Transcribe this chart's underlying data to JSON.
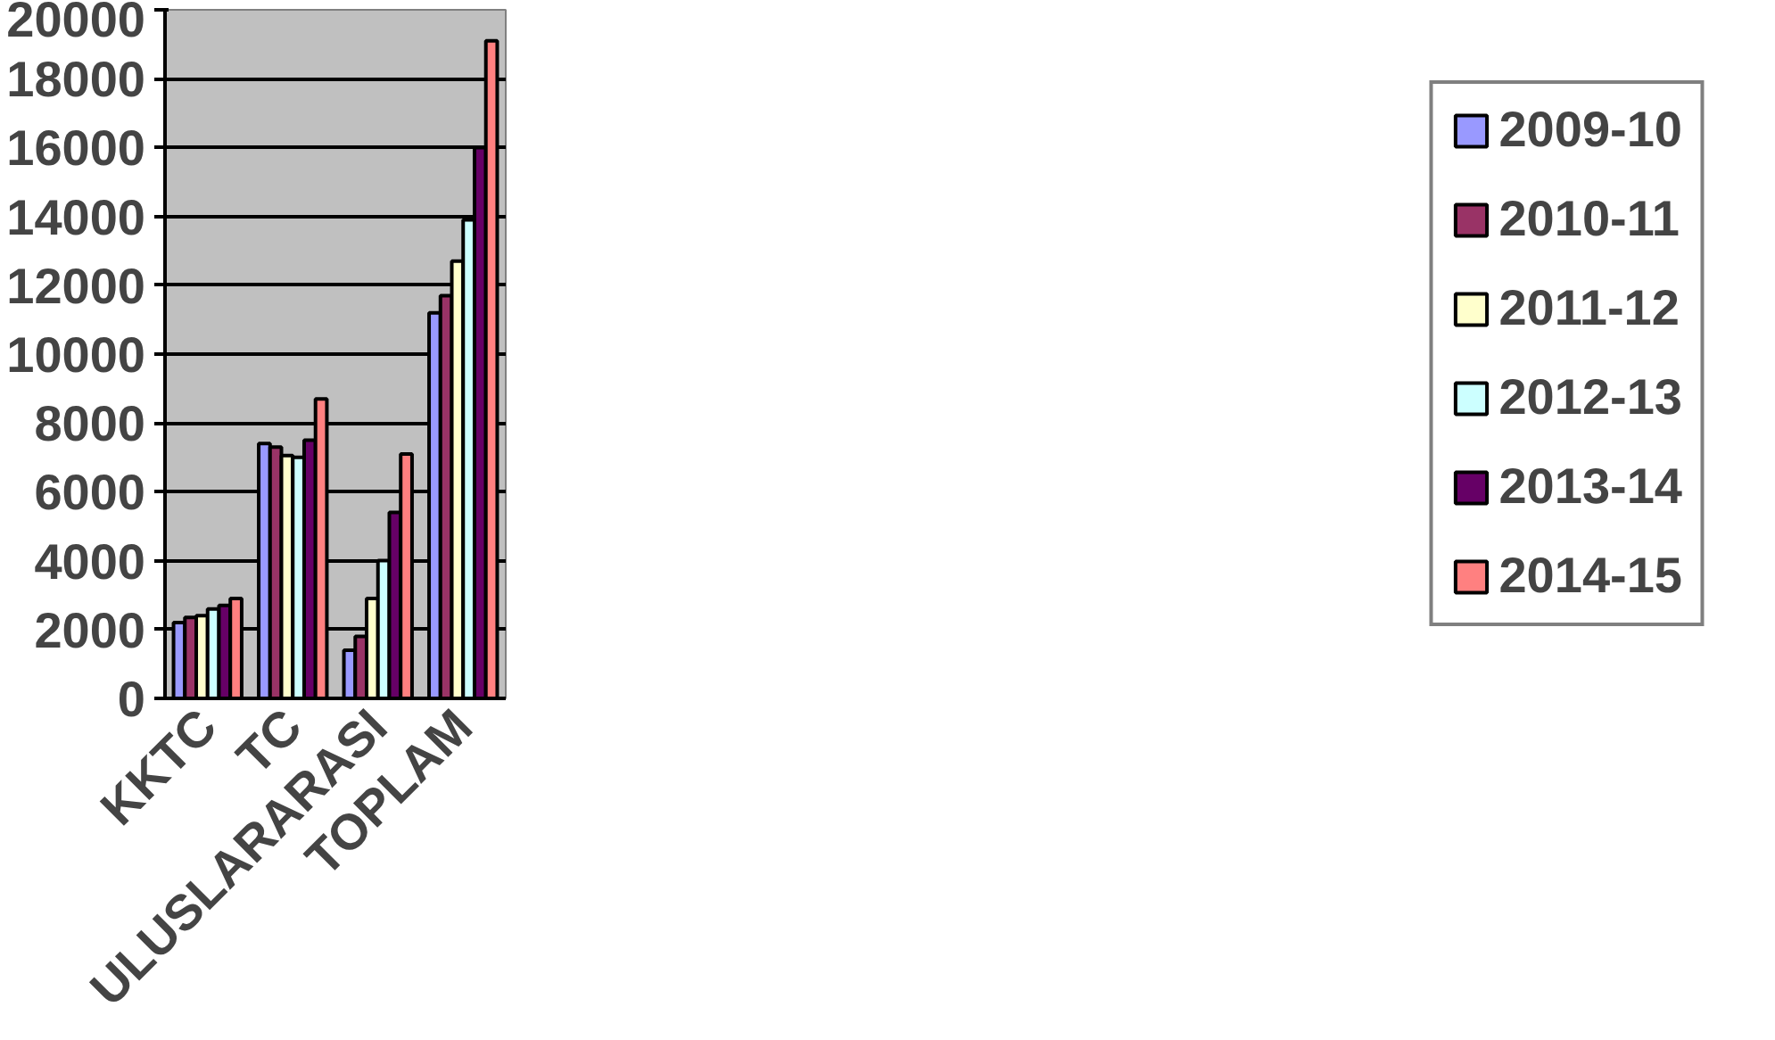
{
  "chart_data": {
    "type": "bar",
    "categories": [
      "KKTC",
      "TC",
      "ULUSLARARASI",
      "TOPLAM"
    ],
    "series": [
      {
        "name": "2009-10",
        "color": "#9999ff",
        "values": [
          2200,
          7400,
          1400,
          11200
        ]
      },
      {
        "name": "2010-11",
        "color": "#993366",
        "values": [
          2350,
          7300,
          1800,
          11700
        ]
      },
      {
        "name": "2011-12",
        "color": "#ffffcc",
        "values": [
          2400,
          7050,
          2900,
          12700
        ]
      },
      {
        "name": "2012-13",
        "color": "#ccffff",
        "values": [
          2600,
          7000,
          4000,
          13900
        ]
      },
      {
        "name": "2013-14",
        "color": "#660066",
        "values": [
          2700,
          7500,
          5400,
          16000
        ]
      },
      {
        "name": "2014-15",
        "color": "#ff8080",
        "values": [
          2900,
          8700,
          7100,
          19100
        ]
      }
    ],
    "ylim": [
      0,
      20000
    ],
    "yticks": [
      0,
      2000,
      4000,
      6000,
      8000,
      10000,
      12000,
      14000,
      16000,
      18000,
      20000
    ],
    "grid": "y",
    "legend": "right"
  }
}
